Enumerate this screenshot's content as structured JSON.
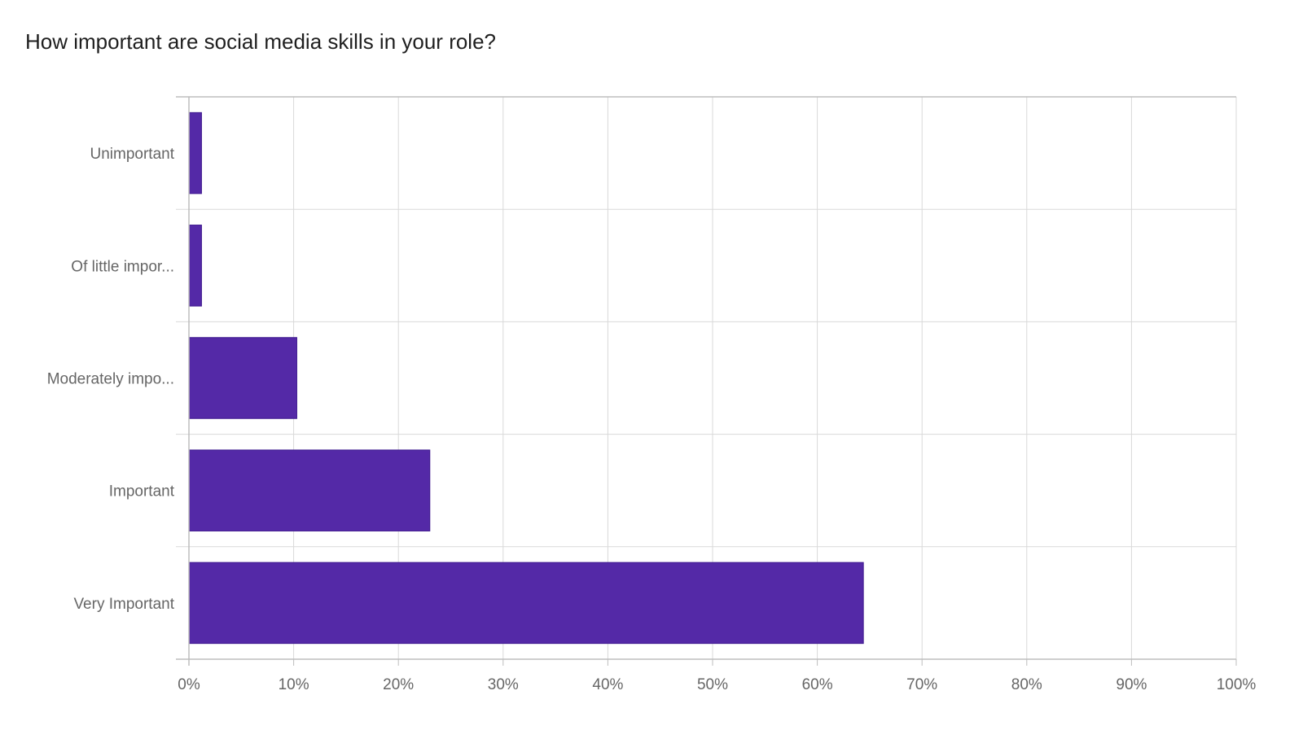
{
  "colors": {
    "bar": "#5429a7",
    "grid": "#d9d9d9",
    "axis": "#bdbdbd",
    "text": "#666666",
    "title": "#1f1f1f"
  },
  "chart_data": {
    "type": "bar",
    "orientation": "horizontal",
    "title": "How important are social media skills in your role?",
    "xlabel": "",
    "ylabel": "",
    "categories": [
      "Unimportant",
      "Of little impor...",
      "Moderately impo...",
      "Important",
      "Very Important"
    ],
    "values": [
      1.2,
      1.2,
      10.3,
      23.0,
      64.4
    ],
    "unit": "%",
    "xlim": [
      0,
      100
    ],
    "ticks": [
      "0%",
      "10%",
      "20%",
      "30%",
      "40%",
      "50%",
      "60%",
      "70%",
      "80%",
      "90%",
      "100%"
    ],
    "grid": true,
    "legend": "none"
  }
}
